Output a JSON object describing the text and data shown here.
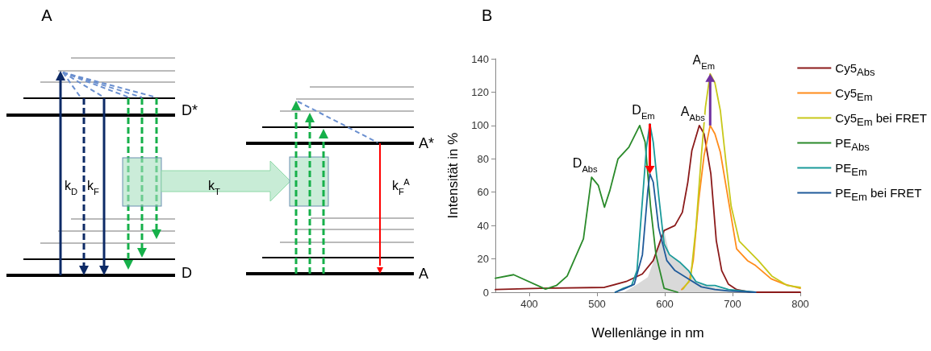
{
  "chart_data": [
    {
      "type": "other",
      "title": "A",
      "annotations": [
        "D*",
        "D",
        "A*",
        "A",
        "k$_{D}$",
        "k$_{F}$",
        "k$_{T}$",
        "k$_{F}$$^{A}$"
      ]
    },
    {
      "type": "line",
      "title": "B",
      "xlabel": "Wellenlänge in nm",
      "ylabel": "Intensität in %",
      "xlim": [
        350,
        800
      ],
      "xticks": [
        400,
        500,
        600,
        700,
        800
      ],
      "ylim": [
        0,
        140
      ],
      "yticks": [
        0,
        20,
        40,
        60,
        80,
        100,
        120,
        140
      ],
      "grid": false,
      "legend": "right",
      "marker": "none",
      "line_style": "solid",
      "annotations": [
        {
          "text": "D$_{Abs}$",
          "x": 492,
          "y": 69
        },
        {
          "text": "D$_{Em}$",
          "x": 578,
          "y": 101
        },
        {
          "text": "A$_{Abs}$",
          "x": 651,
          "y": 100
        },
        {
          "text": "A$_{Em}$",
          "x": 667,
          "y": 131
        }
      ],
      "series": [
        {
          "type": "area",
          "color": "#d9d9d9",
          "x": [
            540,
            560,
            575,
            590,
            599,
            607,
            622,
            634,
            646,
            662,
            690,
            715
          ],
          "values": [
            0,
            5,
            9,
            26,
            37,
            22.5,
            17.7,
            13,
            6.4,
            4,
            1.6,
            0
          ]
        },
        {
          "name": "Cy5$_{Abs}$",
          "color": "#8b1a1a",
          "x": [
            350,
            416,
            511,
            543,
            567,
            583,
            599,
            615,
            626,
            634,
            640,
            651,
            658,
            668,
            676,
            684,
            694,
            706,
            726,
            800
          ],
          "values": [
            1.6,
            2.4,
            2.9,
            6.4,
            11,
            19,
            37,
            40,
            48,
            66,
            85,
            100,
            95,
            71,
            31,
            13,
            4.8,
            1.6,
            0,
            0
          ]
        },
        {
          "name": "Cy5$_{Em}$",
          "color": "#ff8c1a",
          "x": [
            625,
            636,
            642,
            650,
            658,
            667,
            674,
            682,
            694,
            706,
            722,
            734,
            757,
            777,
            800
          ],
          "values": [
            1.6,
            6.4,
            19,
            55,
            82,
            100,
            95,
            84,
            55,
            26,
            19,
            16,
            8,
            4.8,
            2.4
          ]
        },
        {
          "name": "Cy5$_{Em}$ bei FRET",
          "color": "#c8c81a",
          "x": [
            627,
            638,
            646,
            654,
            660,
            667,
            674,
            682,
            690,
            698,
            710,
            726,
            738,
            758,
            781,
            800
          ],
          "values": [
            1.9,
            8,
            38.6,
            82,
            111,
            131,
            125.5,
            109,
            79,
            51.5,
            30.6,
            24,
            19,
            9.7,
            4,
            2.9
          ]
        },
        {
          "name": "PE$_{Abs}$",
          "color": "#2a8a2a",
          "x": [
            350,
            377,
            424,
            440,
            456,
            480,
            492,
            502,
            511,
            519,
            531,
            547,
            563,
            571,
            579,
            587,
            599,
            619
          ],
          "values": [
            8.4,
            10.5,
            1.9,
            4,
            9.7,
            32,
            69,
            64,
            51,
            61,
            80,
            87,
            100,
            90,
            51.5,
            22.5,
            2.4,
            0
          ]
        },
        {
          "name": "PE$_{Em}$",
          "color": "#1a9a9a",
          "x": [
            527,
            539,
            551,
            559,
            567,
            573,
            578,
            583,
            591,
            599,
            607,
            623,
            635,
            646,
            662,
            674,
            694,
            734
          ],
          "values": [
            0,
            2.4,
            4,
            13,
            55,
            87,
            101,
            90,
            58,
            29,
            22.5,
            17.7,
            13,
            6.4,
            4,
            4,
            1.6,
            0
          ]
        },
        {
          "name": "PE$_{Em}$ bei FRET",
          "color": "#1f5a9a",
          "x": [
            527,
            539,
            555,
            567,
            575,
            578,
            583,
            591,
            603,
            615,
            635,
            654,
            674,
            694,
            734
          ],
          "values": [
            0,
            1.9,
            4.8,
            22.5,
            61,
            71,
            66,
            38.6,
            19,
            13,
            8,
            3.2,
            1.6,
            0.8,
            0
          ]
        }
      ]
    }
  ]
}
